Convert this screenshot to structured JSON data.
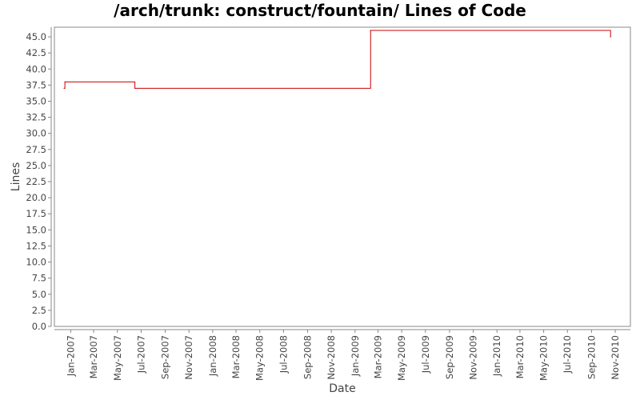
{
  "chart_data": {
    "type": "line",
    "title": "/arch/trunk: construct/fountain/ Lines of Code",
    "xlabel": "Date",
    "ylabel": "Lines",
    "ylim": [
      0,
      46.5
    ],
    "yticks": [
      "0.0",
      "2.5",
      "5.0",
      "7.5",
      "10.0",
      "12.5",
      "15.0",
      "17.5",
      "20.0",
      "22.5",
      "25.0",
      "27.5",
      "30.0",
      "32.5",
      "35.0",
      "37.5",
      "40.0",
      "42.5",
      "45.0"
    ],
    "xlim": [
      "2006-11-20",
      "2010-12-10"
    ],
    "xticks": [
      "Jan-2007",
      "Mar-2007",
      "May-2007",
      "Jul-2007",
      "Sep-2007",
      "Nov-2007",
      "Jan-2008",
      "Mar-2008",
      "May-2008",
      "Jul-2008",
      "Sep-2008",
      "Nov-2008",
      "Jan-2009",
      "Mar-2009",
      "May-2009",
      "Jul-2009",
      "Sep-2009",
      "Nov-2009",
      "Jan-2010",
      "Mar-2010",
      "May-2010",
      "Jul-2010",
      "Sep-2010",
      "Nov-2010"
    ],
    "xtick_dates": [
      "2007-01-01",
      "2007-03-01",
      "2007-05-01",
      "2007-07-01",
      "2007-09-01",
      "2007-11-01",
      "2008-01-01",
      "2008-03-01",
      "2008-05-01",
      "2008-07-01",
      "2008-09-01",
      "2008-11-01",
      "2009-01-01",
      "2009-03-01",
      "2009-05-01",
      "2009-07-01",
      "2009-09-01",
      "2009-11-01",
      "2010-01-01",
      "2010-03-01",
      "2010-05-01",
      "2010-07-01",
      "2010-09-01",
      "2010-11-01"
    ],
    "grid": false,
    "series": [
      {
        "step": true,
        "color": "#cc0000",
        "points": [
          {
            "x": "2006-12-15",
            "y": 37
          },
          {
            "x": "2006-12-17",
            "y": 38
          },
          {
            "x": "2007-06-15",
            "y": 37
          },
          {
            "x": "2009-02-10",
            "y": 46
          },
          {
            "x": "2010-10-20",
            "y": 45
          }
        ]
      }
    ]
  },
  "colors": {
    "line": "#cc0000",
    "axis": "#888888",
    "text": "#444444"
  }
}
